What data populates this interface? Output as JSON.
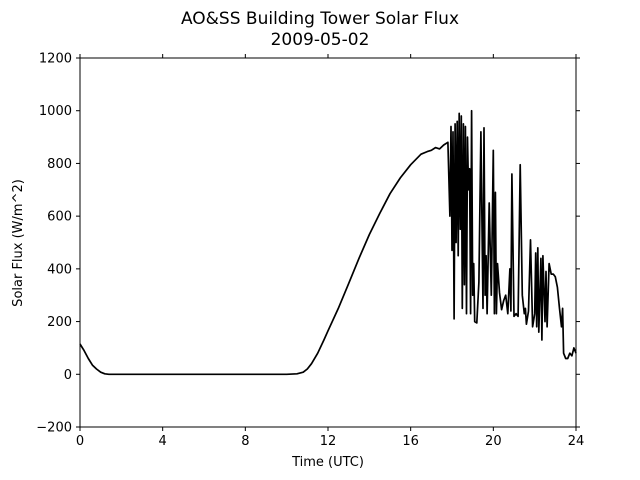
{
  "chart_data": {
    "type": "line",
    "title": "AO&SS Building Tower Solar Flux",
    "subtitle": "2009-05-02",
    "xlabel": "Time (UTC)",
    "ylabel": "Solar Flux (W/m^2)",
    "xlim": [
      0,
      24
    ],
    "ylim": [
      -200,
      1200
    ],
    "xticks": [
      0,
      4,
      8,
      12,
      16,
      20,
      24
    ],
    "yticks": [
      -200,
      0,
      200,
      400,
      600,
      800,
      1000,
      1200
    ],
    "grid": false,
    "legend": "none",
    "color": "#000000",
    "series": [
      {
        "x": [
          0,
          0.2,
          0.4,
          0.6,
          0.8,
          1.0,
          1.2,
          1.4,
          1.6,
          2,
          4,
          6,
          8,
          10,
          10.5,
          10.8,
          11.0,
          11.2,
          11.5,
          11.8,
          12.0,
          12.5,
          13.0,
          13.5,
          14.0,
          14.5,
          15.0,
          15.5,
          16.0,
          16.5,
          16.8,
          17.0,
          17.2,
          17.4,
          17.6,
          17.8,
          17.9,
          17.95,
          18.0,
          18.05,
          18.1,
          18.15,
          18.2,
          18.25,
          18.3,
          18.35,
          18.4,
          18.45,
          18.5,
          18.55,
          18.6,
          18.65,
          18.7,
          18.75,
          18.8,
          18.85,
          18.9,
          18.95,
          19.0,
          19.05,
          19.1,
          19.2,
          19.3,
          19.4,
          19.5,
          19.55,
          19.6,
          19.65,
          19.7,
          19.8,
          19.9,
          20.0,
          20.05,
          20.1,
          20.15,
          20.2,
          20.3,
          20.4,
          20.5,
          20.6,
          20.7,
          20.8,
          20.85,
          20.9,
          21.0,
          21.1,
          21.2,
          21.3,
          21.4,
          21.5,
          21.55,
          21.6,
          21.7,
          21.8,
          21.9,
          22.0,
          22.05,
          22.1,
          22.15,
          22.2,
          22.3,
          22.35,
          22.4,
          22.5,
          22.55,
          22.6,
          22.7,
          22.8,
          22.9,
          23.0,
          23.1,
          23.2,
          23.3,
          23.35,
          23.4,
          23.5,
          23.6,
          23.7,
          23.8,
          23.9,
          24.0
        ],
        "values": [
          115,
          90,
          60,
          35,
          20,
          8,
          2,
          0,
          0,
          0,
          0,
          0,
          0,
          0,
          2,
          8,
          20,
          40,
          80,
          130,
          165,
          250,
          345,
          440,
          530,
          610,
          685,
          745,
          795,
          835,
          845,
          850,
          860,
          855,
          870,
          880,
          600,
          940,
          470,
          920,
          210,
          950,
          500,
          960,
          450,
          990,
          550,
          980,
          250,
          950,
          340,
          940,
          230,
          900,
          700,
          780,
          230,
          1000,
          300,
          420,
          200,
          195,
          350,
          920,
          250,
          935,
          300,
          450,
          230,
          650,
          300,
          850,
          230,
          690,
          230,
          420,
          310,
          245,
          280,
          300,
          230,
          400,
          240,
          760,
          220,
          230,
          220,
          795,
          300,
          230,
          250,
          190,
          240,
          510,
          180,
          230,
          460,
          180,
          480,
          160,
          440,
          130,
          450,
          200,
          390,
          180,
          420,
          380,
          380,
          370,
          330,
          250,
          180,
          250,
          80,
          60,
          60,
          80,
          70,
          100,
          80
        ]
      }
    ]
  }
}
